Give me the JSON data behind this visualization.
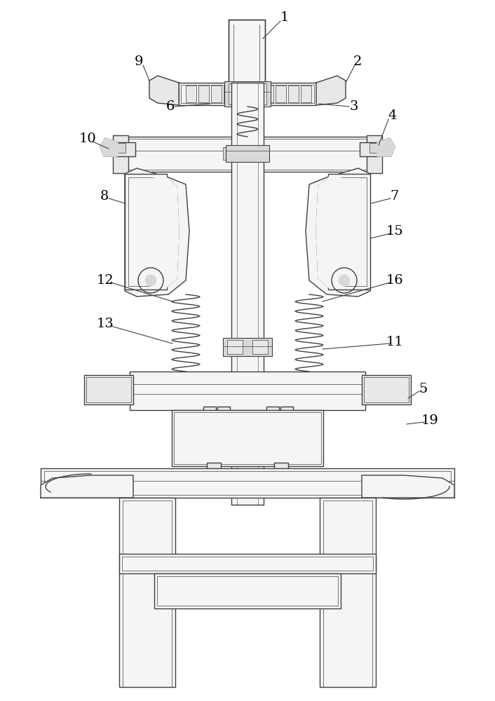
{
  "bg_color": "#ffffff",
  "line_color": "#404040",
  "label_color": "#000000",
  "lw": 1.0,
  "figsize": [
    7.06,
    10.0
  ],
  "dpi": 100
}
